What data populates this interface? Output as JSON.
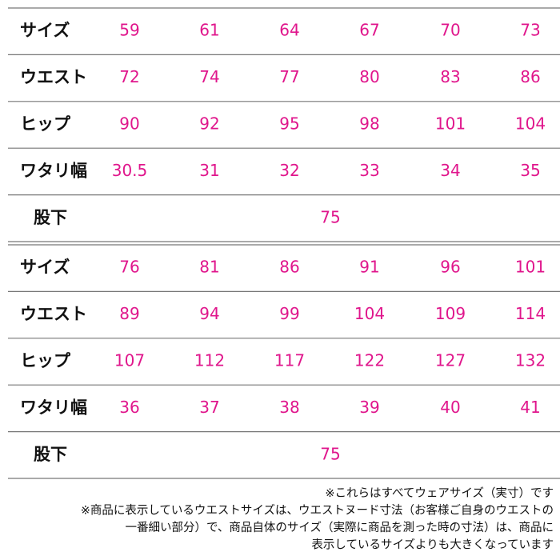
{
  "tables": [
    {
      "rows": [
        {
          "label": "サイズ",
          "values": [
            "59",
            "61",
            "64",
            "67",
            "70",
            "73"
          ]
        },
        {
          "label": "ウエスト",
          "values": [
            "72",
            "74",
            "77",
            "80",
            "83",
            "86"
          ]
        },
        {
          "label": "ヒップ",
          "values": [
            "90",
            "92",
            "95",
            "98",
            "101",
            "104"
          ]
        },
        {
          "label": "ワタリ幅",
          "values": [
            "30.5",
            "31",
            "32",
            "33",
            "34",
            "35"
          ]
        },
        {
          "label": "股下",
          "values": [
            "75"
          ]
        }
      ]
    },
    {
      "rows": [
        {
          "label": "サイズ",
          "values": [
            "76",
            "81",
            "86",
            "91",
            "96",
            "101"
          ]
        },
        {
          "label": "ウエスト",
          "values": [
            "89",
            "94",
            "99",
            "104",
            "109",
            "114"
          ]
        },
        {
          "label": "ヒップ",
          "values": [
            "107",
            "112",
            "117",
            "122",
            "127",
            "132"
          ]
        },
        {
          "label": "ワタリ幅",
          "values": [
            "36",
            "37",
            "38",
            "39",
            "40",
            "41"
          ]
        },
        {
          "label": "股下",
          "values": [
            "75"
          ]
        }
      ]
    }
  ],
  "notes": [
    "※これらはすべてウェアサイズ（実寸）です",
    "※商品に表示しているウエストサイズは、ウエストヌード寸法（お客様ご自身のウエストの",
    "一番細い部分）で、商品自体のサイズ（実際に商品を測った時の寸法）は、商品に",
    "表示しているサイズよりも大きくなっています"
  ]
}
